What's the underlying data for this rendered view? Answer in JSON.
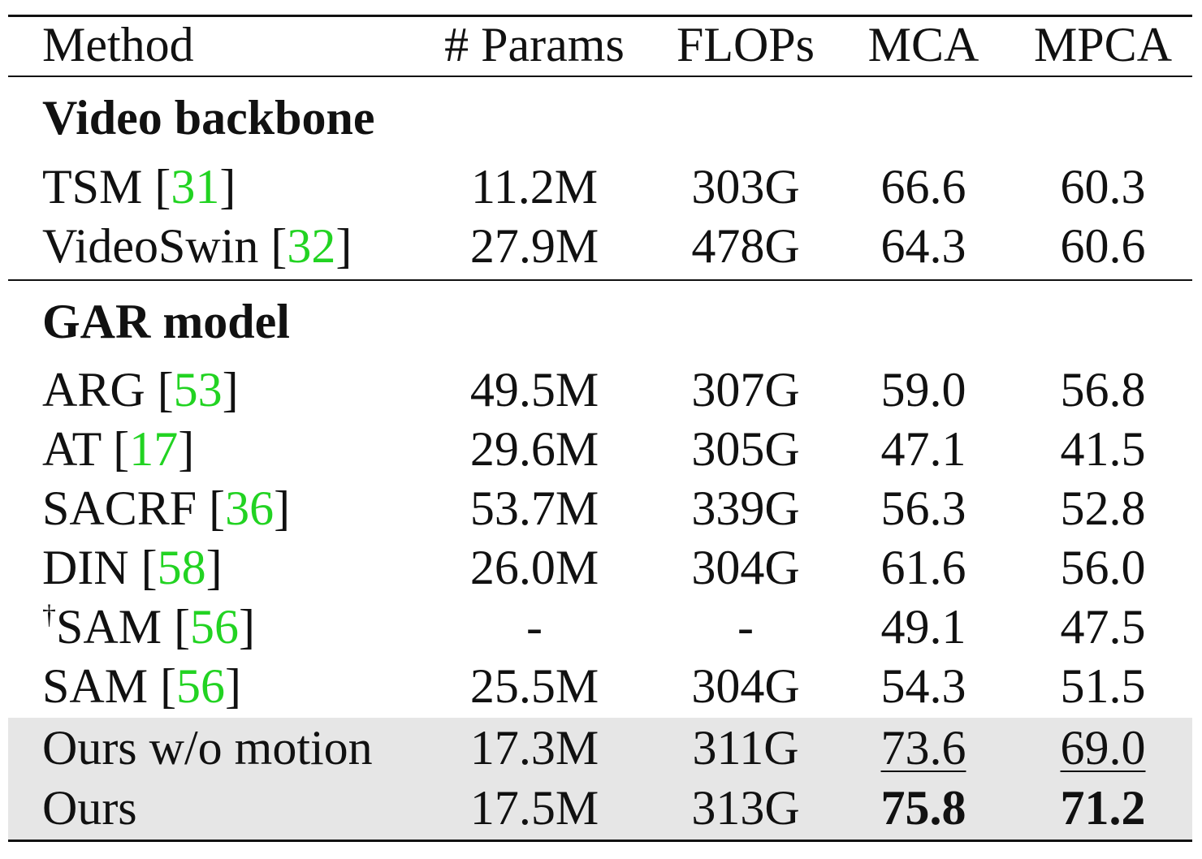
{
  "header": {
    "method": "Method",
    "params": "# Params",
    "flops": "FLOPs",
    "mca": "MCA",
    "mpca": "MPCA"
  },
  "sections": [
    {
      "title": "Video backbone",
      "rows": [
        {
          "method": "TSM",
          "cite": "31",
          "params": "11.2M",
          "flops": "303G",
          "mca": "66.6",
          "mpca": "60.3"
        },
        {
          "method": "VideoSwin",
          "cite": "32",
          "params": "27.9M",
          "flops": "478G",
          "mca": "64.3",
          "mpca": "60.6"
        }
      ]
    },
    {
      "title": "GAR model",
      "rows": [
        {
          "method": "ARG",
          "cite": "53",
          "params": "49.5M",
          "flops": "307G",
          "mca": "59.0",
          "mpca": "56.8"
        },
        {
          "method": "AT",
          "cite": "17",
          "params": "29.6M",
          "flops": "305G",
          "mca": "47.1",
          "mpca": "41.5"
        },
        {
          "method": "SACRF",
          "cite": "36",
          "params": "53.7M",
          "flops": "339G",
          "mca": "56.3",
          "mpca": "52.8"
        },
        {
          "method": "DIN",
          "cite": "58",
          "params": "26.0M",
          "flops": "304G",
          "mca": "61.6",
          "mpca": "56.0"
        },
        {
          "dagger": "†",
          "method": "SAM",
          "cite": "56",
          "params": "-",
          "flops": "-",
          "mca": "49.1",
          "mpca": "47.5"
        },
        {
          "method": "SAM",
          "cite": "56",
          "params": "25.5M",
          "flops": "304G",
          "mca": "54.3",
          "mpca": "51.5"
        },
        {
          "method": "Ours w/o motion",
          "params": "17.3M",
          "flops": "311G",
          "mca": "73.6",
          "mpca": "69.0"
        },
        {
          "method": "Ours",
          "params": "17.5M",
          "flops": "313G",
          "mca": "75.8",
          "mpca": "71.2"
        }
      ]
    }
  ]
}
